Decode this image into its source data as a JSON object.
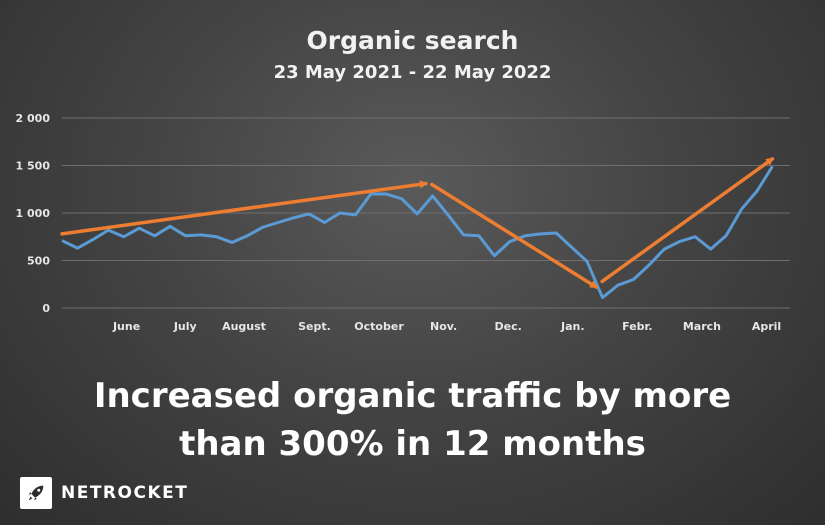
{
  "chart_data": {
    "type": "line",
    "title": "Organic search",
    "subtitle": "23 May 2021 - 22 May 2022",
    "ylim": [
      0,
      2000
    ],
    "y_ticks": [
      "0",
      "500",
      "1 000",
      "1 500",
      "2 000"
    ],
    "y_tick_values": [
      0,
      500,
      1000,
      1500,
      2000
    ],
    "x_tick_labels": [
      "June",
      "July",
      "August",
      "Sept.",
      "October",
      "Nov.",
      "Dec.",
      "Jan.",
      "Febr.",
      "March",
      "April"
    ],
    "x_tick_positions": [
      5.5,
      10.5,
      15.5,
      21.5,
      27,
      32.5,
      38,
      43.5,
      49,
      54.5,
      60
    ],
    "x_range": [
      0,
      62
    ],
    "grid": "horizontal",
    "series": [
      {
        "color": "#5b9bd5",
        "values": [
          710,
          630,
          720,
          820,
          750,
          840,
          760,
          860,
          760,
          770,
          750,
          690,
          760,
          850,
          900,
          950,
          990,
          900,
          1000,
          980,
          1200,
          1200,
          1150,
          990,
          1180,
          980,
          770,
          760,
          550,
          700,
          760,
          780,
          790,
          640,
          490,
          110,
          240,
          300,
          450,
          620,
          700,
          750,
          620,
          760,
          1040,
          1230,
          1490
        ]
      }
    ],
    "trend_arrows": {
      "color": "#ed7d31",
      "segments": [
        {
          "from": [
            0,
            780
          ],
          "to": [
            31,
            1310
          ]
        },
        {
          "from": [
            31.5,
            1300
          ],
          "to": [
            45.5,
            220
          ]
        },
        {
          "from": [
            46,
            280
          ],
          "to": [
            60.5,
            1570
          ]
        }
      ]
    }
  },
  "headline": {
    "line1": "Increased organic traffic by more",
    "line2": "than 300% in 12 months"
  },
  "brand": {
    "name": "NETROCKET",
    "icon": "rocket-icon"
  }
}
